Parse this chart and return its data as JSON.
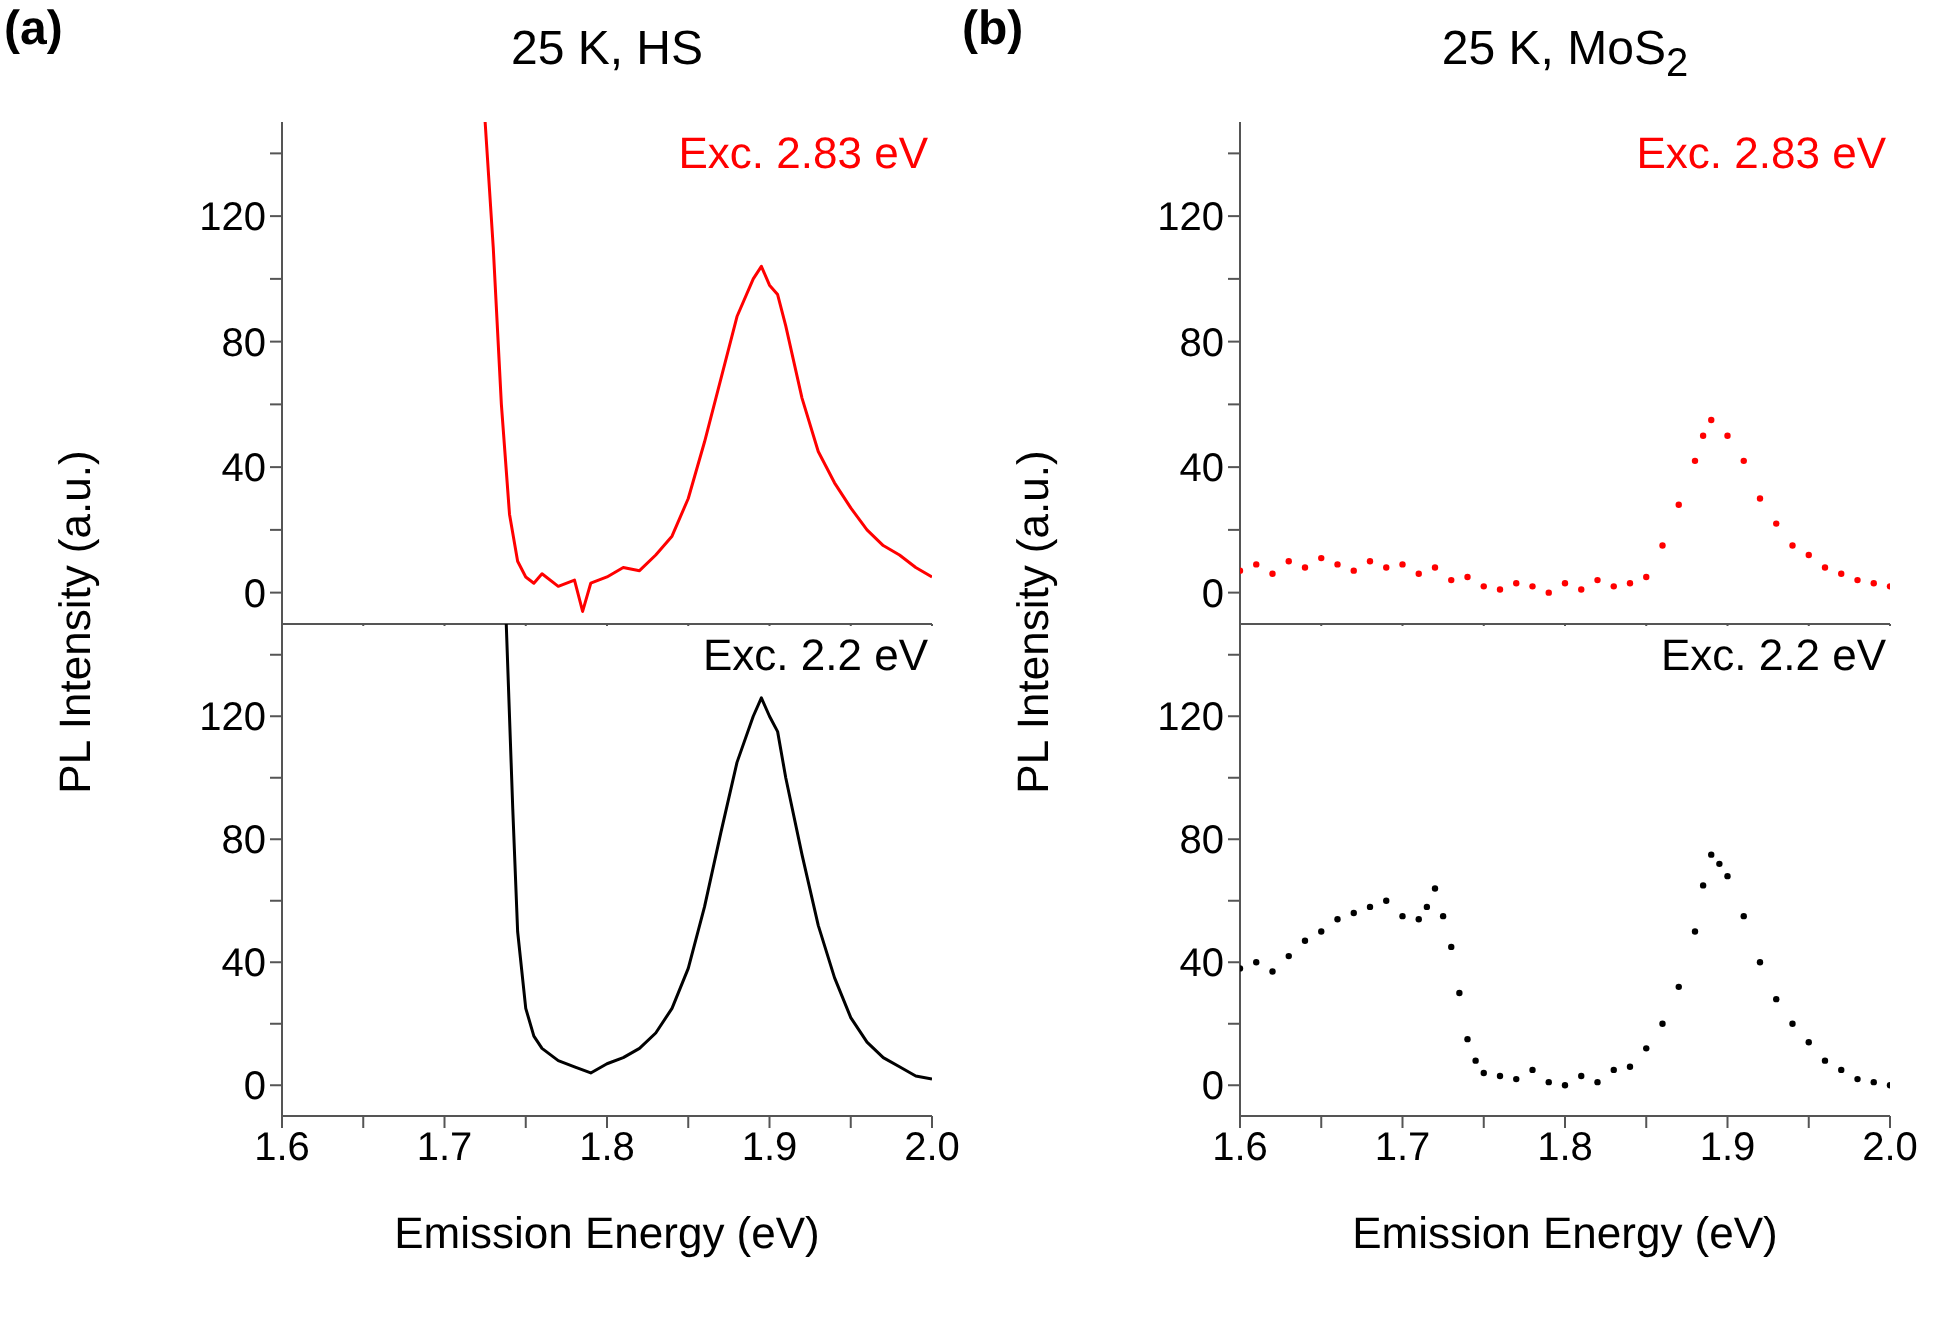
{
  "chart_data": [
    {
      "type": "line",
      "title": "25 K, HS",
      "annotations": [
        "(a)"
      ],
      "xlim": [
        1.6,
        2.0
      ],
      "xticks": [
        {
          "value": 1.6,
          "label": null
        },
        {
          "value": 1.65,
          "label": null
        },
        {
          "value": 1.7,
          "label": null
        },
        {
          "value": 1.75,
          "label": null
        },
        {
          "value": 1.8,
          "label": null
        },
        {
          "value": 1.85,
          "label": null
        },
        {
          "value": 1.9,
          "label": null
        },
        {
          "value": 1.95,
          "label": null
        },
        {
          "value": 2.0,
          "label": null
        }
      ],
      "ylim": [
        -10,
        150
      ],
      "yticks": [
        0,
        {
          "value": 20,
          "label": null
        },
        40,
        {
          "value": 60,
          "label": null
        },
        80,
        {
          "value": 100,
          "label": null
        },
        120,
        {
          "value": 140,
          "label": null
        }
      ],
      "tick_labels": "y",
      "marker": "none",
      "line_style": "solid",
      "series": [
        {
          "name": "Exc. 2.83 eV",
          "color": "#ff0000",
          "x": [
            1.725,
            1.73,
            1.735,
            1.74,
            1.745,
            1.75,
            1.755,
            1.76,
            1.77,
            1.78,
            1.785,
            1.79,
            1.8,
            1.81,
            1.82,
            1.83,
            1.84,
            1.85,
            1.86,
            1.87,
            1.88,
            1.89,
            1.895,
            1.9,
            1.905,
            1.91,
            1.92,
            1.93,
            1.94,
            1.95,
            1.96,
            1.97,
            1.98,
            1.99,
            2.0
          ],
          "values": [
            150,
            110,
            60,
            25,
            10,
            5,
            3,
            6,
            2,
            4,
            -6,
            3,
            5,
            8,
            7,
            12,
            18,
            30,
            48,
            68,
            88,
            100,
            104,
            98,
            95,
            85,
            62,
            45,
            35,
            27,
            20,
            15,
            12,
            8,
            5
          ]
        }
      ]
    },
    {
      "type": "scatter",
      "title": "25 K, MoS$_{2}$",
      "annotations": [
        "(b)"
      ],
      "xlim": [
        1.6,
        2.0
      ],
      "xticks": [
        {
          "value": 1.6,
          "label": null
        },
        {
          "value": 1.65,
          "label": null
        },
        {
          "value": 1.7,
          "label": null
        },
        {
          "value": 1.75,
          "label": null
        },
        {
          "value": 1.8,
          "label": null
        },
        {
          "value": 1.85,
          "label": null
        },
        {
          "value": 1.9,
          "label": null
        },
        {
          "value": 1.95,
          "label": null
        },
        {
          "value": 2.0,
          "label": null
        }
      ],
      "ylim": [
        -10,
        150
      ],
      "yticks": [
        0,
        {
          "value": 20,
          "label": null
        },
        40,
        {
          "value": 60,
          "label": null
        },
        80,
        {
          "value": 100,
          "label": null
        },
        120,
        {
          "value": 140,
          "label": null
        }
      ],
      "tick_labels": "y",
      "marker": "circle",
      "series": [
        {
          "name": "Exc. 2.83 eV",
          "color": "#ff0000",
          "x": [
            1.6,
            1.61,
            1.62,
            1.63,
            1.64,
            1.65,
            1.66,
            1.67,
            1.68,
            1.69,
            1.7,
            1.71,
            1.72,
            1.73,
            1.74,
            1.75,
            1.76,
            1.77,
            1.78,
            1.79,
            1.8,
            1.81,
            1.82,
            1.83,
            1.84,
            1.85,
            1.86,
            1.87,
            1.88,
            1.885,
            1.89,
            1.9,
            1.91,
            1.92,
            1.93,
            1.94,
            1.95,
            1.96,
            1.97,
            1.98,
            1.99,
            2.0
          ],
          "values": [
            7,
            9,
            6,
            10,
            8,
            11,
            9,
            7,
            10,
            8,
            9,
            6,
            8,
            4,
            5,
            2,
            1,
            3,
            2,
            0,
            3,
            1,
            4,
            2,
            3,
            5,
            15,
            28,
            42,
            50,
            55,
            50,
            42,
            30,
            22,
            15,
            12,
            8,
            6,
            4,
            3,
            2
          ]
        }
      ]
    },
    {
      "type": "line",
      "xlabel": "Emission Energy (eV)",
      "ylabel": "PL Intensity (a.u.)",
      "xlim": [
        1.6,
        2.0
      ],
      "xticks": [
        1.6,
        {
          "value": 1.65,
          "label": null
        },
        1.7,
        {
          "value": 1.75,
          "label": null
        },
        1.8,
        {
          "value": 1.85,
          "label": null
        },
        1.9,
        {
          "value": 1.95,
          "label": null
        },
        {
          "value": 2.0,
          "label": "2.0"
        }
      ],
      "ylim": [
        -10,
        150
      ],
      "yticks": [
        0,
        {
          "value": 20,
          "label": null
        },
        40,
        {
          "value": 60,
          "label": null
        },
        80,
        {
          "value": 100,
          "label": null
        },
        120,
        {
          "value": 140,
          "label": null
        }
      ],
      "marker": "none",
      "line_style": "solid",
      "series": [
        {
          "name": "Exc. 2.2 eV",
          "color": "#000000",
          "x": [
            1.738,
            1.742,
            1.745,
            1.75,
            1.755,
            1.76,
            1.77,
            1.78,
            1.79,
            1.8,
            1.81,
            1.82,
            1.83,
            1.84,
            1.85,
            1.86,
            1.87,
            1.88,
            1.89,
            1.895,
            1.9,
            1.905,
            1.91,
            1.92,
            1.93,
            1.94,
            1.95,
            1.96,
            1.97,
            1.98,
            1.99,
            2.0
          ],
          "values": [
            150,
            90,
            50,
            25,
            16,
            12,
            8,
            6,
            4,
            7,
            9,
            12,
            17,
            25,
            38,
            58,
            82,
            105,
            120,
            126,
            120,
            115,
            100,
            75,
            52,
            35,
            22,
            14,
            9,
            6,
            3,
            2
          ]
        }
      ]
    },
    {
      "type": "scatter",
      "xlabel": "Emission Energy (eV)",
      "ylabel": "PL Intensity (a.u.)",
      "xlim": [
        1.6,
        2.0
      ],
      "xticks": [
        1.6,
        {
          "value": 1.65,
          "label": null
        },
        1.7,
        {
          "value": 1.75,
          "label": null
        },
        1.8,
        {
          "value": 1.85,
          "label": null
        },
        1.9,
        {
          "value": 1.95,
          "label": null
        },
        {
          "value": 2.0,
          "label": "2.0"
        }
      ],
      "ylim": [
        -10,
        150
      ],
      "yticks": [
        0,
        {
          "value": 20,
          "label": null
        },
        40,
        {
          "value": 60,
          "label": null
        },
        80,
        {
          "value": 100,
          "label": null
        },
        120,
        {
          "value": 140,
          "label": null
        }
      ],
      "marker": "circle",
      "series": [
        {
          "name": "Exc. 2.2 eV",
          "color": "#000000",
          "x": [
            1.6,
            1.61,
            1.62,
            1.63,
            1.64,
            1.65,
            1.66,
            1.67,
            1.68,
            1.69,
            1.7,
            1.71,
            1.715,
            1.72,
            1.725,
            1.73,
            1.735,
            1.74,
            1.745,
            1.75,
            1.76,
            1.77,
            1.78,
            1.79,
            1.8,
            1.81,
            1.82,
            1.83,
            1.84,
            1.85,
            1.86,
            1.87,
            1.88,
            1.885,
            1.89,
            1.895,
            1.9,
            1.91,
            1.92,
            1.93,
            1.94,
            1.95,
            1.96,
            1.97,
            1.98,
            1.99,
            2.0
          ],
          "values": [
            38,
            40,
            37,
            42,
            47,
            50,
            54,
            56,
            58,
            60,
            55,
            54,
            58,
            64,
            55,
            45,
            30,
            15,
            8,
            4,
            3,
            2,
            5,
            1,
            0,
            3,
            1,
            5,
            6,
            12,
            20,
            32,
            50,
            65,
            75,
            72,
            68,
            55,
            40,
            28,
            20,
            14,
            8,
            5,
            2,
            1,
            0
          ]
        }
      ]
    }
  ]
}
